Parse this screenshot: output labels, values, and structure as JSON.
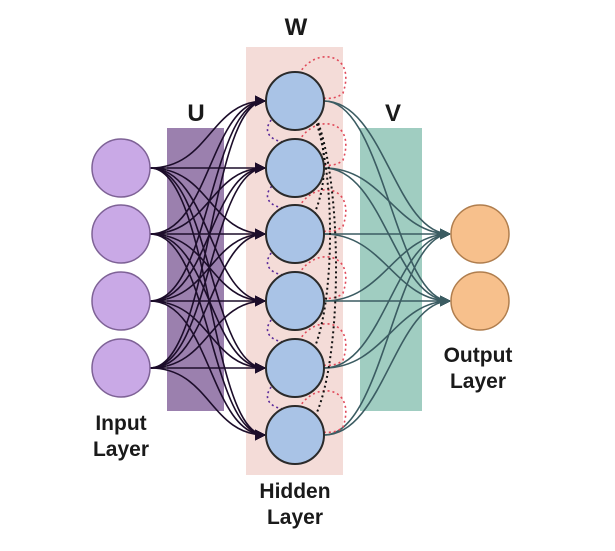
{
  "labels": {
    "weight_w": "W",
    "weight_u": "U",
    "weight_v": "V",
    "input_line1": "Input",
    "input_line2": "Layer",
    "hidden_line1": "Hidden",
    "hidden_line2": "Layer",
    "output_line1": "Output",
    "output_line2": "Layer"
  },
  "layers": {
    "input_count": 4,
    "hidden_count": 6,
    "output_count": 2
  },
  "colors": {
    "input_fill": "#c9a9e6",
    "input_stroke": "#7e6296",
    "hidden_fill": "#a9c3e6",
    "hidden_stroke": "#2a2a2a",
    "output_fill": "#f7c08c",
    "output_stroke": "#b07e4e",
    "u_band": "#8a6aa0",
    "v_band": "#8fc4b6",
    "hidden_band": "#f4dcd8",
    "input_edges": "#1c0d2a",
    "output_edges": "#3b5c62",
    "recurrent_red": "#e04a5a",
    "recurrent_purple": "#5a2a9a",
    "recurrent_black": "#111111"
  }
}
